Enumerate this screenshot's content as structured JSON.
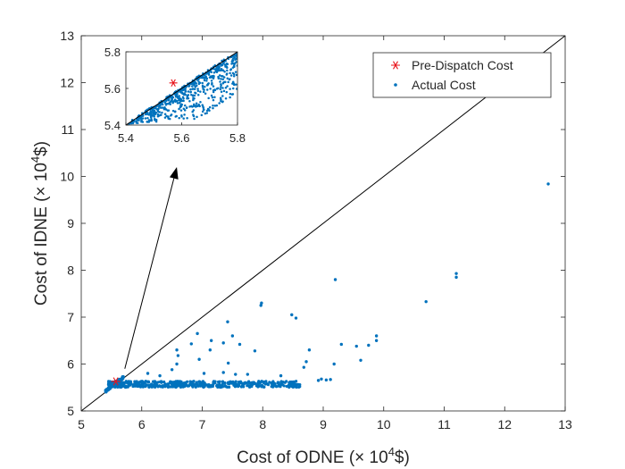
{
  "chart_data": {
    "type": "scatter",
    "title": "",
    "xlabel": {
      "prefix": "Cost of ODNE (",
      "times": "×",
      "base": " 10",
      "exp": "4",
      "unit": "$)"
    },
    "ylabel": {
      "prefix": "Cost of IDNE (",
      "times": "×",
      "base": " 10",
      "exp": "4",
      "unit": "$)"
    },
    "xlim": [
      5,
      13
    ],
    "ylim": [
      5,
      13
    ],
    "xticks": [
      "5",
      "6",
      "7",
      "8",
      "9",
      "10",
      "11",
      "12",
      "13"
    ],
    "yticks": [
      "5",
      "6",
      "7",
      "8",
      "9",
      "10",
      "11",
      "12",
      "13"
    ],
    "grid": false,
    "legend": {
      "position": "top-right",
      "entries": [
        {
          "label": "Pre-Dispatch Cost",
          "marker": "star",
          "color": "#e8141b"
        },
        {
          "label": "Actual Cost",
          "marker": "dot",
          "color": "#0072bd"
        }
      ]
    },
    "reference_line": {
      "name": "y = x",
      "from": [
        5,
        5
      ],
      "to": [
        13,
        13
      ],
      "color": "#000000"
    },
    "series": [
      {
        "name": "Pre-Dispatch Cost",
        "marker": "star",
        "color": "#e8141b",
        "points": [
          [
            5.57,
            5.63
          ]
        ]
      },
      {
        "name": "Actual Cost",
        "marker": "dot",
        "color": "#0072bd",
        "cluster": {
          "description": "dense band of actual costs",
          "x_range": [
            5.4,
            8.7
          ],
          "y_range": [
            5.5,
            5.72
          ]
        },
        "points": [
          [
            12.72,
            9.84
          ],
          [
            11.2,
            7.93
          ],
          [
            11.2,
            7.85
          ],
          [
            10.7,
            7.33
          ],
          [
            9.2,
            7.8
          ],
          [
            7.98,
            7.3
          ],
          [
            7.97,
            7.25
          ],
          [
            8.48,
            7.05
          ],
          [
            8.55,
            6.98
          ],
          [
            7.42,
            6.9
          ],
          [
            6.92,
            6.65
          ],
          [
            7.5,
            6.6
          ],
          [
            9.88,
            6.6
          ],
          [
            7.15,
            6.5
          ],
          [
            6.82,
            6.43
          ],
          [
            7.35,
            6.45
          ],
          [
            7.62,
            6.42
          ],
          [
            9.3,
            6.42
          ],
          [
            9.55,
            6.38
          ],
          [
            9.75,
            6.4
          ],
          [
            9.88,
            6.5
          ],
          [
            6.58,
            6.3
          ],
          [
            7.13,
            6.3
          ],
          [
            7.87,
            6.28
          ],
          [
            8.77,
            6.3
          ],
          [
            6.6,
            6.18
          ],
          [
            9.62,
            6.08
          ],
          [
            6.95,
            6.1
          ],
          [
            6.58,
            6.0
          ],
          [
            7.43,
            6.02
          ],
          [
            9.18,
            6.0
          ],
          [
            8.72,
            6.05
          ],
          [
            8.68,
            5.93
          ],
          [
            6.5,
            5.88
          ],
          [
            7.35,
            5.82
          ],
          [
            7.55,
            5.78
          ],
          [
            6.3,
            5.75
          ],
          [
            7.03,
            5.8
          ],
          [
            7.75,
            5.78
          ],
          [
            8.3,
            5.75
          ],
          [
            6.1,
            5.8
          ],
          [
            9.05,
            5.66
          ],
          [
            9.12,
            5.67
          ],
          [
            8.92,
            5.65
          ],
          [
            8.97,
            5.68
          ]
        ]
      }
    ],
    "inset": {
      "xlim": [
        5.4,
        5.8
      ],
      "ylim": [
        5.4,
        5.8
      ],
      "xticks": [
        "5.4",
        "5.6",
        "5.8"
      ],
      "yticks": [
        "5.4",
        "5.6",
        "5.8"
      ],
      "description": "zoom on the dense region near the pre-dispatch cost"
    },
    "annotation": {
      "type": "arrow",
      "from": [
        5.72,
        5.9
      ],
      "to": [
        6.58,
        10.2
      ],
      "text": ""
    }
  }
}
